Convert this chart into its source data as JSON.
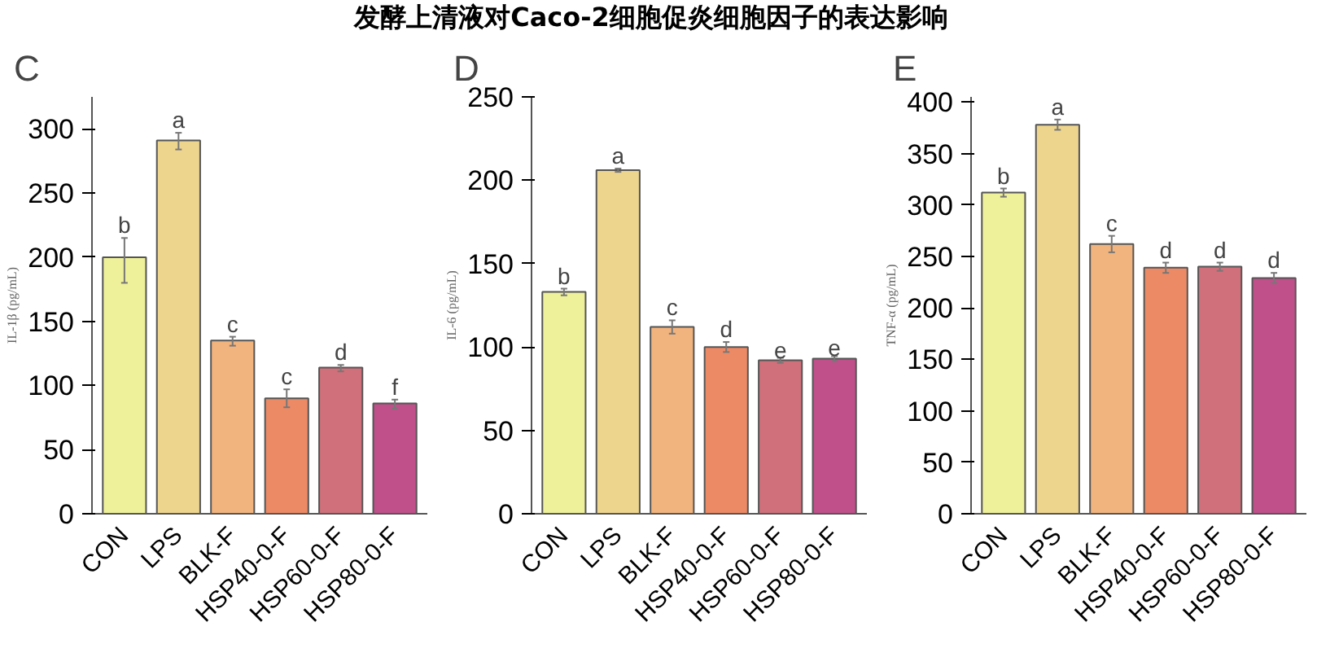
{
  "chart_data": [
    {
      "type": "bar",
      "title": "发酵上清液对Caco-2细胞促炎细胞因子的表达影响",
      "ylabel": "IL-1β (pg/mL)",
      "categories": [
        "CON",
        "LPS",
        "BLK-F",
        "HSP40-0-F",
        "HSP60-0-F",
        "HSP80-0-F"
      ],
      "values": [
        200,
        291,
        135,
        90,
        114,
        86
      ],
      "errors": [
        [
          180,
          215
        ],
        [
          284,
          297
        ],
        [
          131,
          138
        ],
        [
          83,
          97
        ],
        [
          111,
          116
        ],
        [
          82,
          89
        ]
      ],
      "colors": [
        "#eef09a",
        "#eed58e",
        "#f2b47e",
        "#ec8a66",
        "#d0707a",
        "#c0508a"
      ],
      "ylim": [
        0,
        325
      ],
      "yticks": [
        0,
        50,
        100,
        150,
        200,
        250,
        300
      ],
      "grid": false,
      "annotations": [
        "C",
        {
          "text": "b",
          "x": "CON",
          "y": 215
        },
        {
          "text": "a",
          "x": "LPS",
          "y": 297
        },
        {
          "text": "c",
          "x": "BLK-F",
          "y": 138
        },
        {
          "text": "c",
          "x": "HSP40-0-F",
          "y": 97
        },
        {
          "text": "d",
          "x": "HSP60-0-F",
          "y": 116
        },
        {
          "text": "f",
          "x": "HSP80-0-F",
          "y": 89
        }
      ]
    },
    {
      "type": "bar",
      "ylabel": "IL-6 (pg/mL)",
      "categories": [
        "CON",
        "LPS",
        "BLK-F",
        "HSP40-0-F",
        "HSP60-0-F",
        "HSP80-0-F"
      ],
      "values": [
        133,
        206,
        112,
        100,
        92,
        93
      ],
      "errors": [
        2,
        1,
        4,
        3,
        1.5,
        1.5
      ],
      "colors": [
        "#eef09a",
        "#eed58e",
        "#f2b47e",
        "#ec8a66",
        "#d0707a",
        "#c0508a"
      ],
      "ylim": [
        0,
        250
      ],
      "yticks": [
        0,
        50,
        100,
        150,
        200,
        250
      ],
      "grid": false,
      "annotations": [
        "D",
        {
          "text": "b",
          "x": "CON",
          "y": 135
        },
        {
          "text": "a",
          "x": "LPS",
          "y": 207
        },
        {
          "text": "c",
          "x": "BLK-F",
          "y": 116
        },
        {
          "text": "d",
          "x": "HSP40-0-F",
          "y": 103
        },
        {
          "text": "e",
          "x": "HSP60-0-F",
          "y": 93.5
        },
        {
          "text": "e",
          "x": "HSP80-0-F",
          "y": 94.5
        }
      ]
    },
    {
      "type": "bar",
      "ylabel": "TNF-α (pg/mL)",
      "categories": [
        "CON",
        "LPS",
        "BLK-F",
        "HSP40-0-F",
        "HSP60-0-F",
        "HSP80-0-F"
      ],
      "values": [
        312,
        378,
        262,
        239,
        240,
        229
      ],
      "errors": [
        4,
        5,
        8,
        5,
        4,
        5
      ],
      "colors": [
        "#eef09a",
        "#eed58e",
        "#f2b47e",
        "#ec8a66",
        "#d0707a",
        "#c0508a"
      ],
      "ylim": [
        0,
        405
      ],
      "yticks": [
        0,
        50,
        100,
        150,
        200,
        250,
        300,
        350,
        400
      ],
      "grid": false,
      "annotations": [
        "E",
        {
          "text": "b",
          "x": "CON",
          "y": 316
        },
        {
          "text": "a",
          "x": "LPS",
          "y": 383
        },
        {
          "text": "c",
          "x": "BLK-F",
          "y": 270
        },
        {
          "text": "d",
          "x": "HSP40-0-F",
          "y": 244
        },
        {
          "text": "d",
          "x": "HSP60-0-F",
          "y": 244
        },
        {
          "text": "d",
          "x": "HSP80-0-F",
          "y": 234
        }
      ]
    }
  ]
}
